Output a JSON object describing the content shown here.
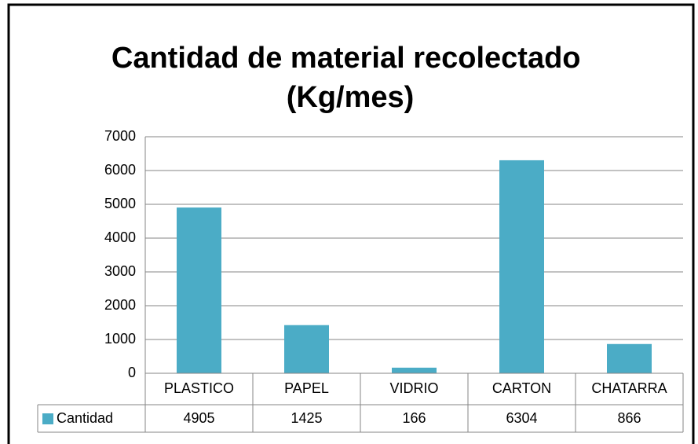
{
  "chart_data": {
    "type": "bar",
    "title": "Cantidad de material recolectado (Kg/mes)",
    "categories": [
      "PLASTICO",
      "PAPEL",
      "VIDRIO",
      "CARTON",
      "CHATARRA"
    ],
    "series": [
      {
        "name": "Cantidad",
        "color": "#4bacc6",
        "values": [
          4905,
          1425,
          166,
          6304,
          866
        ]
      }
    ],
    "ylim": [
      0,
      7000
    ],
    "yticks": [
      0,
      1000,
      2000,
      3000,
      4000,
      5000,
      6000,
      7000
    ],
    "grid": true,
    "data_table": true
  }
}
